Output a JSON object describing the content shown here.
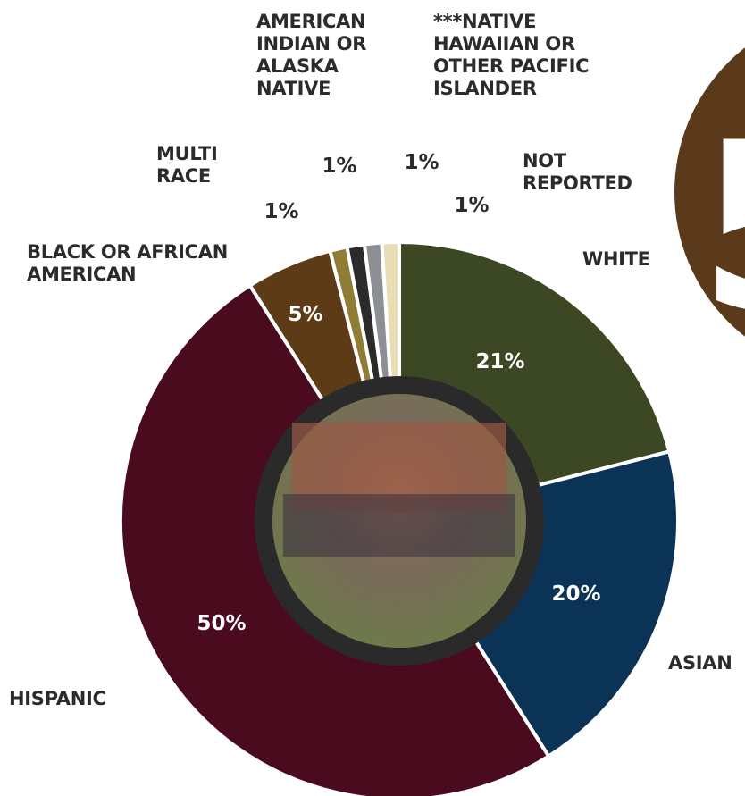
{
  "chart_data": {
    "type": "donut",
    "categories": [
      "WHITE",
      "ASIAN",
      "HISPANIC",
      "BLACK OR AFRICAN\nAMERICAN",
      "MULTI\nRACE",
      "AMERICAN\nINDIAN OR\nALASKA\nNATIVE",
      "***NATIVE\nHAWAIIAN OR\nOTHER PACIFIC\nISLANDER",
      "NOT\nREPORTED"
    ],
    "values": [
      21,
      20,
      50,
      5,
      1,
      1,
      1,
      1
    ],
    "value_labels": [
      "21%",
      "20%",
      "50%",
      "5%",
      "1%",
      "1%",
      "1%",
      "1%"
    ],
    "colors": [
      "#3b4823",
      "#0b3356",
      "#4a0b1e",
      "#5e3b17",
      "#8f7d36",
      "#2b2b2b",
      "#8c8f94",
      "#e9ddb6"
    ],
    "annotations": [
      "5"
    ]
  }
}
